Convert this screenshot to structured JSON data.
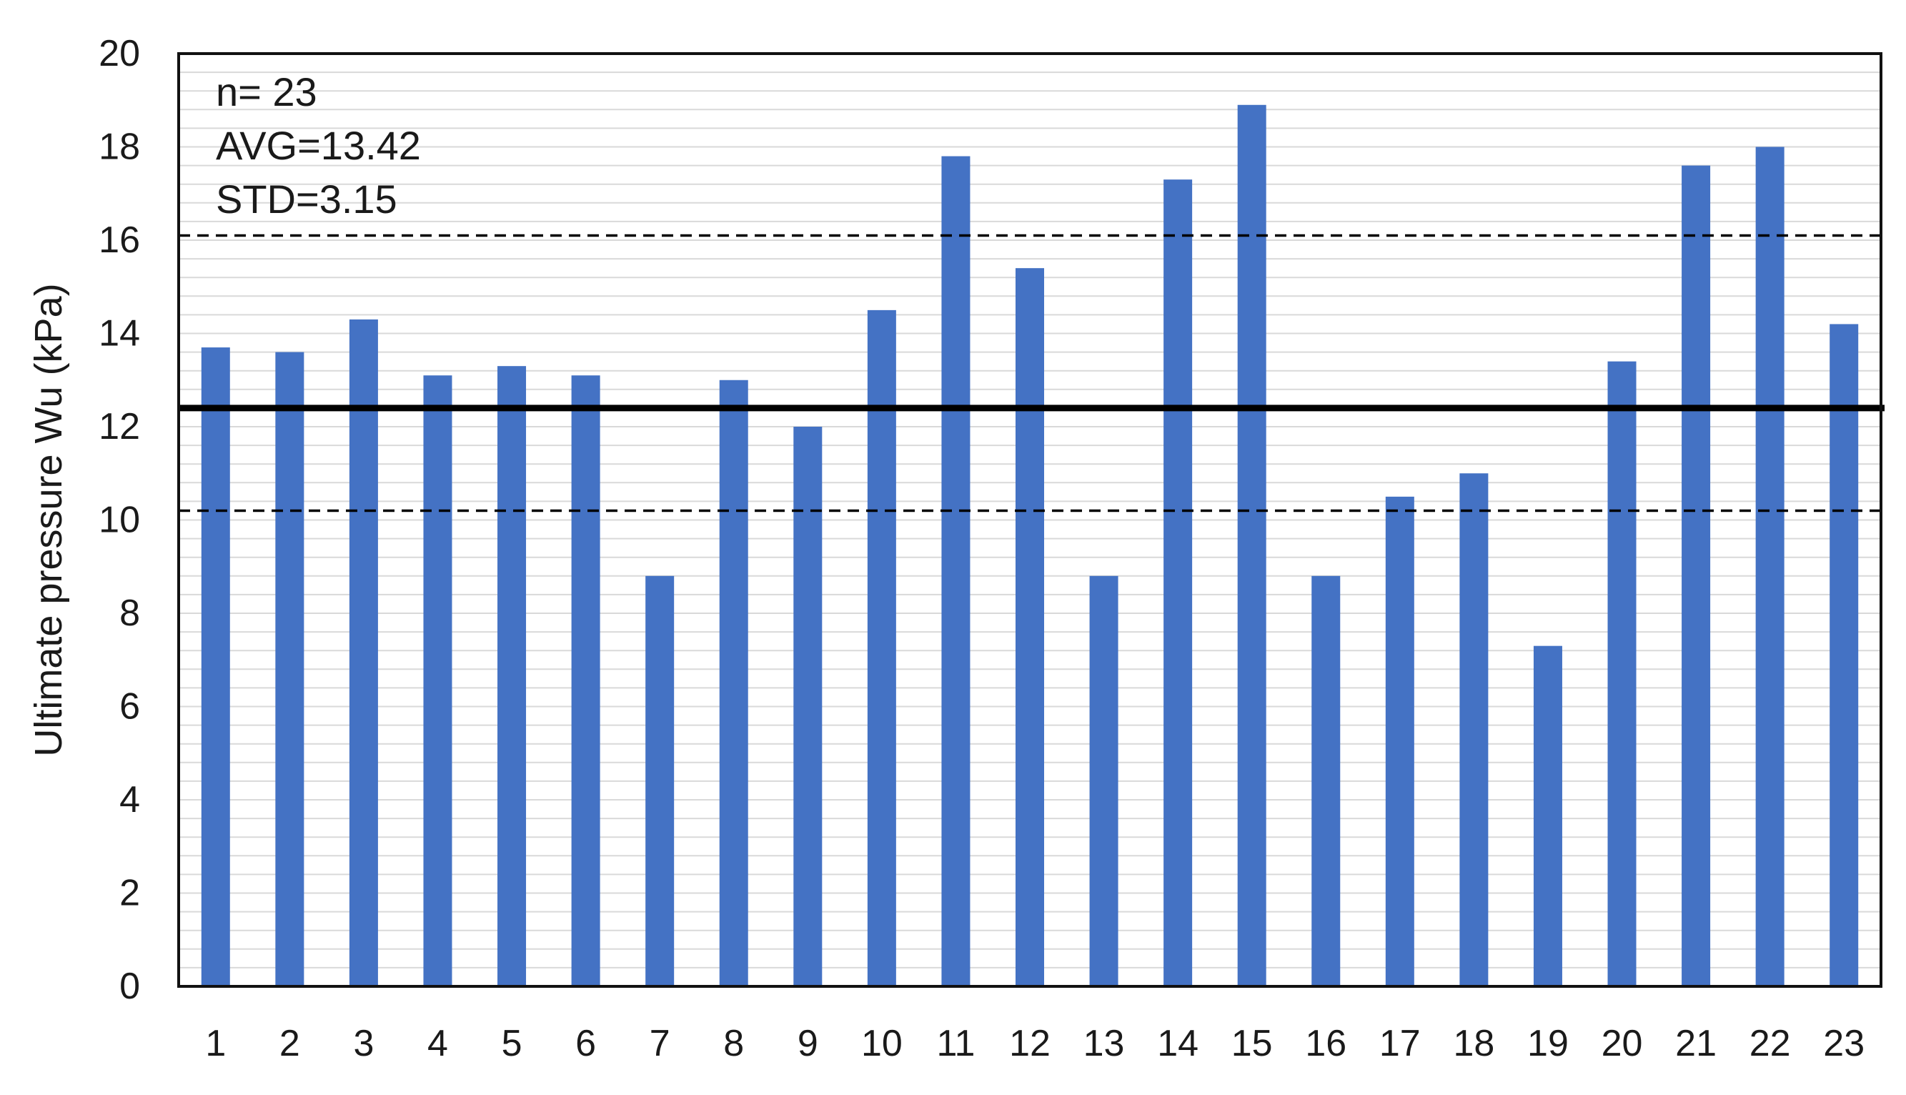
{
  "chart_data": {
    "type": "bar",
    "title": "",
    "xlabel": "",
    "ylabel": "Ultimate pressure Wu (kPa)",
    "categories": [
      "1",
      "2",
      "3",
      "4",
      "5",
      "6",
      "7",
      "8",
      "9",
      "10",
      "11",
      "12",
      "13",
      "14",
      "15",
      "16",
      "17",
      "18",
      "19",
      "20",
      "21",
      "22",
      "23"
    ],
    "series": [
      {
        "values": [
          13.7,
          13.6,
          14.3,
          13.1,
          13.3,
          13.1,
          8.8,
          13.0,
          12.0,
          14.5,
          17.8,
          15.4,
          8.8,
          17.3,
          18.9,
          8.8,
          10.5,
          11.0,
          7.3,
          13.4,
          17.6,
          18.0,
          14.2
        ],
        "color": "#4472c4"
      }
    ],
    "ylim": [
      0,
      20
    ],
    "yticks": [
      0,
      2,
      4,
      6,
      8,
      10,
      12,
      14,
      16,
      18,
      20
    ],
    "minor_grid_step": 0.4,
    "grid": true,
    "reference_lines": [
      {
        "value": 12.4,
        "style": "solid",
        "color": "#000000"
      },
      {
        "value": 16.1,
        "style": "dashed",
        "color": "#000000"
      },
      {
        "value": 10.2,
        "style": "dashed",
        "color": "#000000"
      }
    ],
    "annotations": [
      "n= 23",
      "AVG=13.42",
      "STD=3.15"
    ]
  }
}
